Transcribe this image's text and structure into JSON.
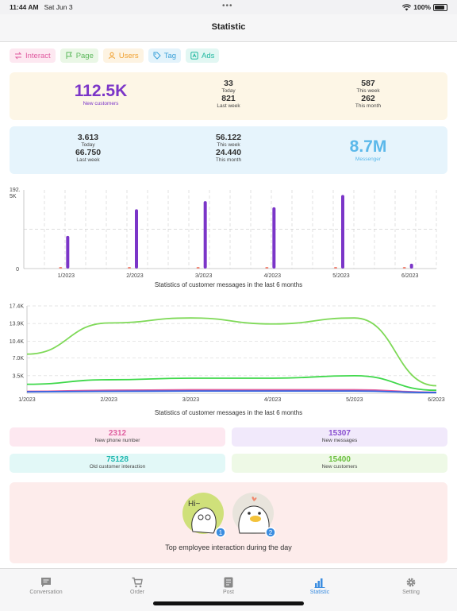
{
  "status_bar": {
    "time": "11:44 AM",
    "date": "Sat Jun 3",
    "battery": "100%"
  },
  "header": {
    "title": "Statistic"
  },
  "filters": [
    {
      "label": "Interact",
      "icon": "swap-icon",
      "color": "#e05aa0",
      "bg": "#fde8f1"
    },
    {
      "label": "Page",
      "icon": "flag-icon",
      "color": "#5cb85c",
      "bg": "#eaf7e6"
    },
    {
      "label": "Users",
      "icon": "user-icon",
      "color": "#f0a030",
      "bg": "#fdf3e2"
    },
    {
      "label": "Tag",
      "icon": "tag-icon",
      "color": "#3aa0d8",
      "bg": "#e3f3fb"
    },
    {
      "label": "Ads",
      "icon": "ads-icon",
      "color": "#20b8a0",
      "bg": "#e2f7f3"
    }
  ],
  "customers_card": {
    "main_value": "112.5K",
    "main_label": "New customers",
    "today_value": "33",
    "today_label": "Today",
    "last_week_value": "821",
    "last_week_label": "Last week",
    "this_week_value": "587",
    "this_week_label": "This week",
    "this_month_value": "262",
    "this_month_label": "This month"
  },
  "messages_card": {
    "today_value": "3.613",
    "today_label": "Today",
    "last_week_value": "66.750",
    "last_week_label": "Last week",
    "this_week_value": "56.122",
    "this_week_label": "This week",
    "this_month_value": "24.440",
    "this_month_label": "This month",
    "main_value": "8.7M",
    "main_label": "Messenger"
  },
  "bar_chart": {
    "caption": "Statistics of customer messages in the last 6 months",
    "y_top_label": "192.",
    "y_top_label2": "5K",
    "y_zero_label": "0"
  },
  "line_chart": {
    "caption": "Statistics of customer messages in the last 6 months"
  },
  "chart_data": [
    {
      "type": "bar",
      "categories": [
        "1/2023",
        "2/2023",
        "3/2023",
        "4/2023",
        "5/2023",
        "6/2023"
      ],
      "series": [
        {
          "color": "#f08070",
          "values": [
            4000,
            4000,
            4000,
            4000,
            4000,
            4000
          ]
        },
        {
          "color": "#7b35c8",
          "values": [
            80000,
            145000,
            165000,
            150000,
            180000,
            12000
          ]
        }
      ],
      "ylim": [
        0,
        192500
      ],
      "yticks": [
        "0",
        "192.5K"
      ],
      "grid": true
    },
    {
      "type": "line",
      "x": [
        "1/2023",
        "2/2023",
        "3/2023",
        "4/2023",
        "5/2023",
        "6/2023"
      ],
      "series": [
        {
          "color": "#7ed957",
          "values": [
            7800,
            14000,
            15000,
            13800,
            15000,
            1500
          ]
        },
        {
          "color": "#3ed84a",
          "values": [
            1800,
            2700,
            3000,
            3000,
            3500,
            600
          ]
        },
        {
          "color": "#e060a0",
          "values": [
            400,
            600,
            700,
            700,
            700,
            200
          ]
        },
        {
          "color": "#3060e0",
          "values": [
            300,
            400,
            450,
            450,
            450,
            150
          ]
        }
      ],
      "ylim": [
        0,
        17400
      ],
      "yticks": [
        "3.5K",
        "7.0K",
        "10.4K",
        "13.9K",
        "17.4K"
      ],
      "grid": true
    }
  ],
  "mini_stats": [
    {
      "value": "2312",
      "label": "New phone number",
      "color": "#e060a0",
      "bg": "#fde8f0"
    },
    {
      "value": "15307",
      "label": "New messages",
      "color": "#8a50d0",
      "bg": "#f1e9fb"
    },
    {
      "value": "75128",
      "label": "Old customer interaction",
      "color": "#20b8b0",
      "bg": "#e2f8f7"
    },
    {
      "value": "15400",
      "label": "New customers",
      "color": "#6cc040",
      "bg": "#eef9e6"
    }
  ],
  "employees": {
    "caption": "Top employee interaction during the day",
    "first_badge": "1",
    "second_badge": "2",
    "first_greeting": "Hi~"
  },
  "tabs": [
    {
      "label": "Conversation",
      "icon": "chat-icon",
      "active": false
    },
    {
      "label": "Order",
      "icon": "cart-icon",
      "active": false
    },
    {
      "label": "Post",
      "icon": "post-icon",
      "active": false
    },
    {
      "label": "Statistic",
      "icon": "chart-icon",
      "active": true
    },
    {
      "label": "Setting",
      "icon": "gear-icon",
      "active": false
    }
  ]
}
